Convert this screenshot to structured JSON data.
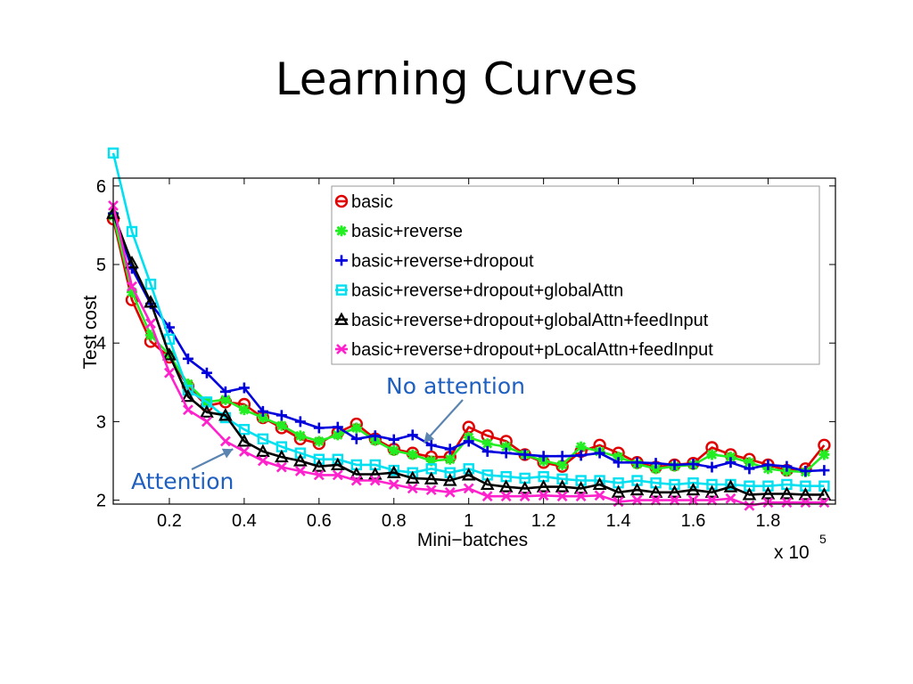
{
  "slide": {
    "title": "Learning Curves"
  },
  "chart_data": {
    "type": "line",
    "title": "",
    "xlabel": "Mini−batches",
    "ylabel": "Test cost",
    "x_multiplier": "x 10",
    "x_multiplier_exponent": "5",
    "xlim": [
      0.05,
      1.98
    ],
    "ylim": [
      1.95,
      6.1
    ],
    "xticks": [
      0.2,
      0.4,
      0.6,
      0.8,
      1,
      1.2,
      1.4,
      1.6,
      1.8
    ],
    "xtick_labels": [
      "0.2",
      "0.4",
      "0.6",
      "0.8",
      "1",
      "1.2",
      "1.4",
      "1.6",
      "1.8"
    ],
    "yticks": [
      2,
      3,
      4,
      5,
      6
    ],
    "ytick_labels": [
      "2",
      "3",
      "4",
      "5",
      "6"
    ],
    "grid": false,
    "legend_position": "top-right",
    "annotations": [
      {
        "text": "No attention",
        "points_to": {
          "x": 0.88,
          "y": 2.73
        }
      },
      {
        "text": "Attention",
        "points_to": {
          "x": 0.37,
          "y": 2.65
        }
      }
    ],
    "series": [
      {
        "name": "basic",
        "color": "#e00000",
        "marker": "circle",
        "x": [
          0.05,
          0.1,
          0.15,
          0.2,
          0.25,
          0.3,
          0.35,
          0.4,
          0.45,
          0.5,
          0.55,
          0.6,
          0.65,
          0.7,
          0.75,
          0.8,
          0.85,
          0.9,
          0.95,
          1.0,
          1.05,
          1.1,
          1.15,
          1.2,
          1.25,
          1.3,
          1.35,
          1.4,
          1.45,
          1.5,
          1.55,
          1.6,
          1.65,
          1.7,
          1.75,
          1.8,
          1.85,
          1.9,
          1.95
        ],
        "y": [
          5.58,
          4.55,
          4.02,
          3.82,
          3.45,
          3.2,
          3.25,
          3.22,
          3.05,
          2.92,
          2.78,
          2.72,
          2.86,
          2.97,
          2.78,
          2.65,
          2.6,
          2.55,
          2.55,
          2.93,
          2.82,
          2.75,
          2.58,
          2.48,
          2.43,
          2.62,
          2.7,
          2.6,
          2.48,
          2.42,
          2.45,
          2.47,
          2.67,
          2.58,
          2.52,
          2.45,
          2.38,
          2.4,
          2.7
        ]
      },
      {
        "name": "basic+reverse",
        "color": "#22ee22",
        "marker": "asterisk",
        "x": [
          0.05,
          0.1,
          0.15,
          0.2,
          0.25,
          0.3,
          0.35,
          0.4,
          0.45,
          0.5,
          0.55,
          0.6,
          0.65,
          0.7,
          0.75,
          0.8,
          0.85,
          0.9,
          0.95,
          1.0,
          1.05,
          1.1,
          1.15,
          1.2,
          1.25,
          1.3,
          1.35,
          1.4,
          1.45,
          1.5,
          1.55,
          1.6,
          1.65,
          1.7,
          1.75,
          1.8,
          1.85,
          1.9,
          1.95
        ],
        "y": [
          5.62,
          4.65,
          4.1,
          3.85,
          3.48,
          3.25,
          3.28,
          3.15,
          3.05,
          2.95,
          2.82,
          2.75,
          2.83,
          2.92,
          2.76,
          2.63,
          2.58,
          2.5,
          2.52,
          2.8,
          2.72,
          2.68,
          2.58,
          2.5,
          2.45,
          2.68,
          2.62,
          2.55,
          2.46,
          2.4,
          2.43,
          2.45,
          2.58,
          2.55,
          2.48,
          2.4,
          2.37,
          2.36,
          2.58
        ]
      },
      {
        "name": "basic+reverse+dropout",
        "color": "#0000dd",
        "marker": "plus",
        "x": [
          0.05,
          0.1,
          0.15,
          0.2,
          0.25,
          0.3,
          0.35,
          0.4,
          0.45,
          0.5,
          0.55,
          0.6,
          0.65,
          0.7,
          0.75,
          0.8,
          0.85,
          0.9,
          0.95,
          1.0,
          1.05,
          1.1,
          1.15,
          1.2,
          1.25,
          1.3,
          1.35,
          1.4,
          1.45,
          1.5,
          1.55,
          1.6,
          1.65,
          1.7,
          1.75,
          1.8,
          1.85,
          1.9,
          1.95
        ],
        "y": [
          5.65,
          4.95,
          4.5,
          4.2,
          3.8,
          3.62,
          3.38,
          3.43,
          3.13,
          3.08,
          3.0,
          2.92,
          2.93,
          2.78,
          2.82,
          2.77,
          2.83,
          2.7,
          2.65,
          2.75,
          2.62,
          2.6,
          2.58,
          2.56,
          2.56,
          2.57,
          2.6,
          2.48,
          2.48,
          2.47,
          2.45,
          2.46,
          2.42,
          2.48,
          2.4,
          2.45,
          2.43,
          2.37,
          2.38
        ]
      },
      {
        "name": "basic+reverse+dropout+globalAttn",
        "color": "#00e0f0",
        "marker": "square",
        "x": [
          0.05,
          0.1,
          0.15,
          0.2,
          0.25,
          0.3,
          0.35,
          0.4,
          0.45,
          0.5,
          0.55,
          0.6,
          0.65,
          0.7,
          0.75,
          0.8,
          0.85,
          0.9,
          0.95,
          1.0,
          1.05,
          1.1,
          1.15,
          1.2,
          1.25,
          1.3,
          1.35,
          1.4,
          1.45,
          1.5,
          1.55,
          1.6,
          1.65,
          1.7,
          1.75,
          1.8,
          1.85,
          1.9,
          1.95
        ],
        "y": [
          6.42,
          5.42,
          4.75,
          4.05,
          3.4,
          3.25,
          3.05,
          2.9,
          2.78,
          2.68,
          2.6,
          2.52,
          2.52,
          2.45,
          2.45,
          2.38,
          2.35,
          2.4,
          2.35,
          2.4,
          2.32,
          2.3,
          2.28,
          2.3,
          2.27,
          2.25,
          2.25,
          2.22,
          2.25,
          2.22,
          2.2,
          2.22,
          2.2,
          2.2,
          2.18,
          2.18,
          2.2,
          2.18,
          2.18
        ]
      },
      {
        "name": "basic+reverse+dropout+globalAttn+feedInput",
        "color": "#000000",
        "marker": "triangle",
        "x": [
          0.05,
          0.1,
          0.15,
          0.2,
          0.25,
          0.3,
          0.35,
          0.4,
          0.45,
          0.5,
          0.55,
          0.6,
          0.65,
          0.7,
          0.75,
          0.8,
          0.85,
          0.9,
          0.95,
          1.0,
          1.05,
          1.1,
          1.15,
          1.2,
          1.25,
          1.3,
          1.35,
          1.4,
          1.45,
          1.5,
          1.55,
          1.6,
          1.65,
          1.7,
          1.75,
          1.8,
          1.85,
          1.9,
          1.95
        ],
        "y": [
          5.65,
          5.02,
          4.52,
          3.85,
          3.32,
          3.12,
          3.08,
          2.75,
          2.62,
          2.55,
          2.5,
          2.43,
          2.45,
          2.33,
          2.33,
          2.35,
          2.28,
          2.27,
          2.25,
          2.32,
          2.2,
          2.17,
          2.15,
          2.17,
          2.17,
          2.15,
          2.2,
          2.1,
          2.13,
          2.1,
          2.1,
          2.13,
          2.1,
          2.17,
          2.07,
          2.08,
          2.08,
          2.07,
          2.07
        ]
      },
      {
        "name": "basic+reverse+dropout+pLocalAttn+feedInput",
        "color": "#ff22cc",
        "marker": "x",
        "x": [
          0.05,
          0.1,
          0.15,
          0.2,
          0.25,
          0.3,
          0.35,
          0.4,
          0.45,
          0.5,
          0.55,
          0.6,
          0.65,
          0.7,
          0.75,
          0.8,
          0.85,
          0.9,
          0.95,
          1.0,
          1.05,
          1.1,
          1.15,
          1.2,
          1.25,
          1.3,
          1.35,
          1.4,
          1.45,
          1.5,
          1.55,
          1.6,
          1.65,
          1.7,
          1.75,
          1.8,
          1.85,
          1.9,
          1.95
        ],
        "y": [
          5.75,
          4.72,
          4.25,
          3.62,
          3.15,
          3.0,
          2.75,
          2.62,
          2.5,
          2.42,
          2.37,
          2.32,
          2.32,
          2.25,
          2.25,
          2.2,
          2.15,
          2.13,
          2.1,
          2.15,
          2.05,
          2.05,
          2.05,
          2.06,
          2.05,
          2.05,
          2.06,
          1.98,
          2.0,
          2.0,
          2.0,
          2.0,
          2.0,
          2.02,
          1.93,
          1.97,
          1.97,
          1.97,
          1.97
        ]
      }
    ]
  }
}
